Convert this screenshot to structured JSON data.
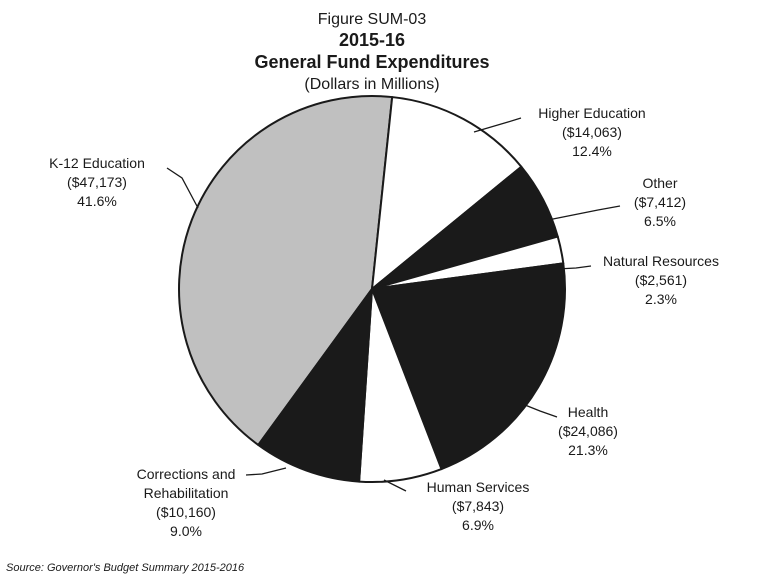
{
  "chart_data": {
    "type": "pie",
    "figure_label": "Figure SUM-03",
    "title": "2015-16",
    "title2": "General Fund Expenditures",
    "subtitle": "(Dollars in Millions)",
    "source": "Source: Governor's Budget Summary 2015-2016",
    "slices": [
      {
        "name": "K-12 Education",
        "amount": "($47,173)",
        "value": 47173,
        "percent": "41.6%",
        "color": "#c0c0c0"
      },
      {
        "name": "Higher Education",
        "amount": "($14,063)",
        "value": 14063,
        "percent": "12.4%",
        "color": "#ffffff"
      },
      {
        "name": "Other",
        "amount": "($7,412)",
        "value": 7412,
        "percent": "6.5%",
        "color": "#1a1a1a"
      },
      {
        "name": "Natural Resources",
        "amount": "($2,561)",
        "value": 2561,
        "percent": "2.3%",
        "color": "#ffffff"
      },
      {
        "name": "Health",
        "amount": "($24,086)",
        "value": 24086,
        "percent": "21.3%",
        "color": "#1a1a1a"
      },
      {
        "name": "Human Services",
        "amount": "($7,843)",
        "value": 7843,
        "percent": "6.9%",
        "color": "#ffffff"
      },
      {
        "name": "Corrections and Rehabilitation",
        "amount": "($10,160)",
        "value": 10160,
        "percent": "9.0%",
        "color": "#1a1a1a"
      }
    ]
  }
}
